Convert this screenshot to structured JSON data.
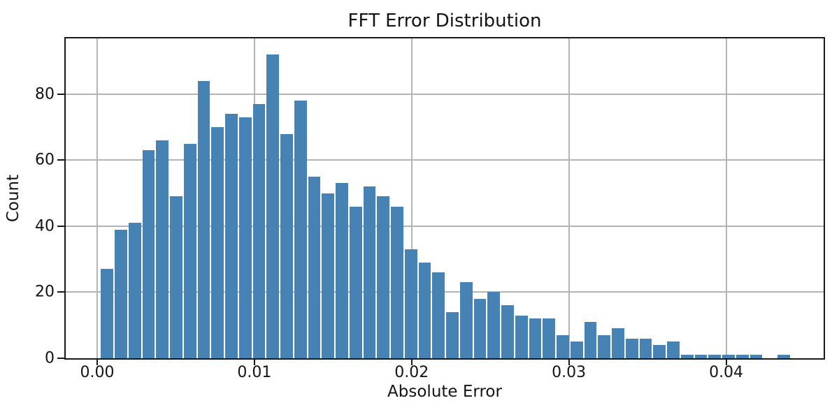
{
  "chart_data": {
    "type": "bar",
    "subtype": "histogram",
    "title": "FFT Error Distribution",
    "xlabel": "Absolute Error",
    "ylabel": "Count",
    "bin_start": 0.0002,
    "bin_width": 0.000878,
    "counts": [
      27,
      39,
      41,
      63,
      66,
      49,
      65,
      84,
      70,
      74,
      73,
      77,
      92,
      68,
      78,
      55,
      50,
      53,
      46,
      52,
      49,
      46,
      33,
      29,
      26,
      14,
      23,
      18,
      20,
      16,
      13,
      12,
      12,
      7,
      5,
      11,
      7,
      9,
      6,
      6,
      4,
      5,
      1,
      1,
      1,
      1,
      1,
      1,
      0,
      1
    ],
    "x_tick_values": [
      0.0,
      0.01,
      0.02,
      0.03,
      0.04
    ],
    "x_tick_labels": [
      "0.00",
      "0.01",
      "0.02",
      "0.03",
      "0.04"
    ],
    "y_tick_values": [
      0,
      20,
      40,
      60,
      80
    ],
    "y_tick_labels": [
      "0",
      "20",
      "40",
      "60",
      "80"
    ],
    "xlim": [
      -0.002,
      0.0462
    ],
    "ylim": [
      0,
      96.9
    ],
    "grid": true,
    "legend": false,
    "bar_color": "#4682B4",
    "grid_color": "#b4b4b4",
    "axis_color": "#1a1a1a"
  }
}
